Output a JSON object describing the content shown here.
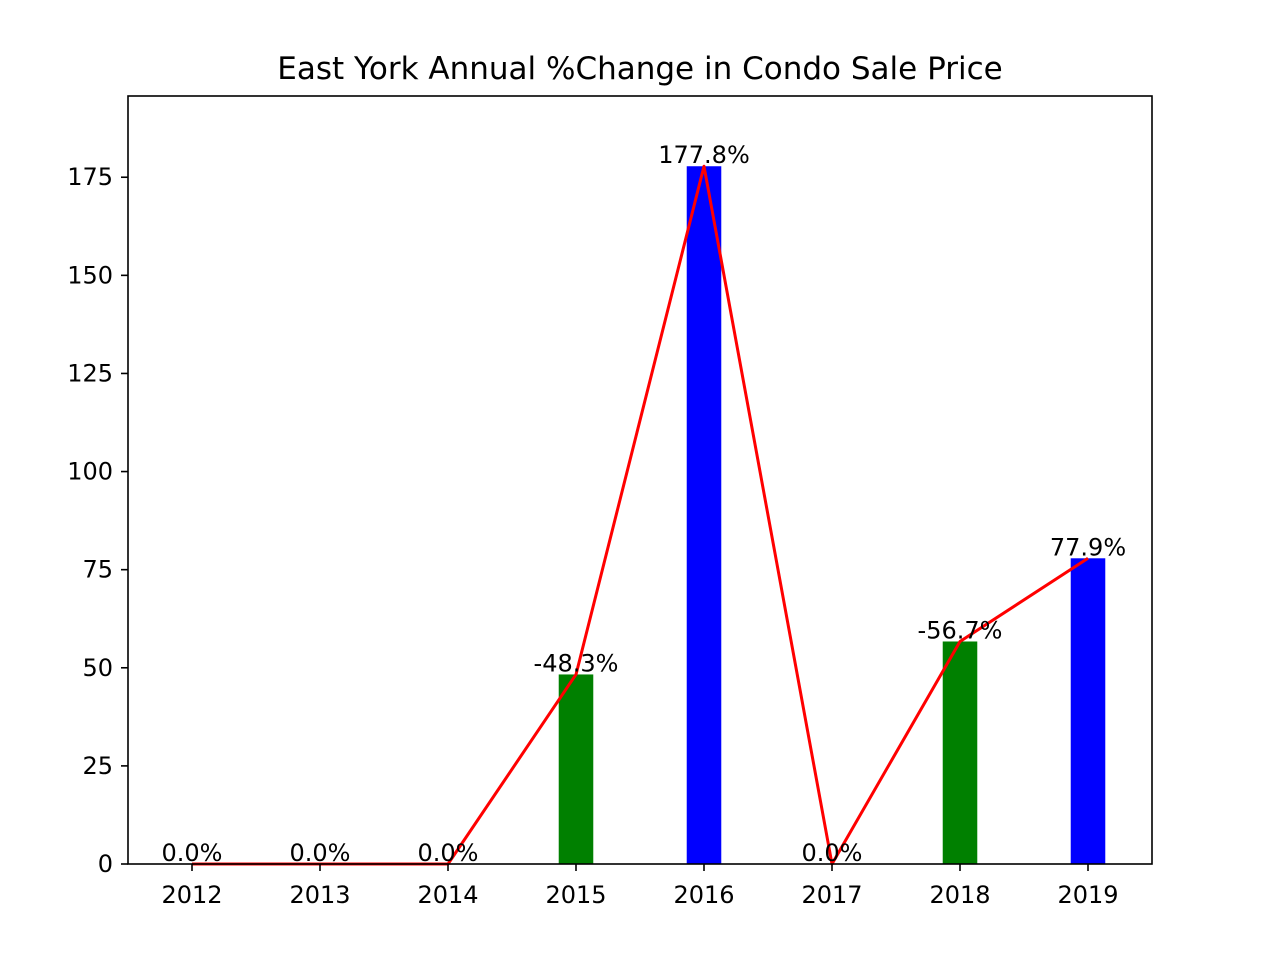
{
  "chart_data": {
    "type": "bar",
    "title": "East York Annual %Change in Condo Sale Price",
    "xlabel": "",
    "ylabel": "",
    "categories": [
      "2012",
      "2013",
      "2014",
      "2015",
      "2016",
      "2017",
      "2018",
      "2019"
    ],
    "values": [
      0,
      0,
      0,
      48.3,
      177.8,
      0,
      56.7,
      77.9
    ],
    "bar_colors": [
      "#0000ff",
      "#0000ff",
      "#0000ff",
      "#008000",
      "#0000ff",
      "#0000ff",
      "#008000",
      "#0000ff"
    ],
    "data_labels": [
      "0.0%",
      "0.0%",
      "0.0%",
      "-48.3%",
      "177.8%",
      "0.0%",
      "-56.7%",
      "77.9%"
    ],
    "line": {
      "values": [
        0,
        0,
        0,
        48.3,
        177.8,
        0,
        56.7,
        77.9
      ],
      "color": "#ff0000"
    },
    "ylim": [
      0,
      195.7
    ],
    "yticks": [
      0,
      25,
      50,
      75,
      100,
      125,
      150,
      175
    ],
    "grid": false,
    "legend": "none"
  }
}
